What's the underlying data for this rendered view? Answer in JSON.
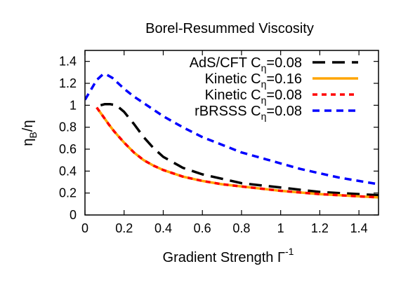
{
  "chart_data": {
    "type": "line",
    "title": "Borel-Resummed Viscosity",
    "xlabel": "Gradient Strength Γ",
    "xlabel_sup": "-1",
    "ylabel_main": "η",
    "ylabel_sub": "B",
    "ylabel_tail": "/η",
    "xlim": [
      0,
      1.5
    ],
    "ylim": [
      0,
      1.5
    ],
    "x_ticks": [
      0,
      0.2,
      0.4,
      0.6,
      0.8,
      1,
      1.2,
      1.4
    ],
    "x_tick_labels": [
      "0",
      "0.2",
      "0.4",
      "0.6",
      "0.8",
      "1",
      "1.2",
      "1.4"
    ],
    "y_ticks": [
      0,
      0.2,
      0.4,
      0.6,
      0.8,
      1,
      1.2,
      1.4
    ],
    "y_tick_labels": [
      "0",
      "0.2",
      "0.4",
      "0.6",
      "0.8",
      "1",
      "1.2",
      "1.4"
    ],
    "grid": false,
    "legend_position": "top-right",
    "series": [
      {
        "legend_main": "AdS/CFT C",
        "legend_sub": "η",
        "legend_value": "=0.08",
        "color": "#000000",
        "style": "long-dash",
        "x": [
          0.08,
          0.1,
          0.13,
          0.16,
          0.2,
          0.25,
          0.3,
          0.35,
          0.4,
          0.5,
          0.6,
          0.7,
          0.8,
          0.9,
          1.0,
          1.1,
          1.2,
          1.3,
          1.4,
          1.5
        ],
        "y": [
          1.0,
          1.01,
          1.01,
          1.0,
          0.94,
          0.83,
          0.71,
          0.61,
          0.53,
          0.43,
          0.37,
          0.33,
          0.29,
          0.27,
          0.25,
          0.23,
          0.21,
          0.2,
          0.19,
          0.18
        ]
      },
      {
        "legend_main": "Kinetic C",
        "legend_sub": "η",
        "legend_value": "=0.16",
        "color": "#ffa500",
        "style": "solid",
        "x": [
          0.06,
          0.08,
          0.1,
          0.12,
          0.15,
          0.2,
          0.25,
          0.3,
          0.35,
          0.4,
          0.5,
          0.6,
          0.7,
          0.8,
          0.9,
          1.0,
          1.1,
          1.2,
          1.3,
          1.4,
          1.5
        ],
        "y": [
          0.98,
          0.93,
          0.88,
          0.83,
          0.76,
          0.66,
          0.57,
          0.5,
          0.45,
          0.41,
          0.35,
          0.31,
          0.28,
          0.26,
          0.24,
          0.22,
          0.205,
          0.19,
          0.18,
          0.17,
          0.16
        ]
      },
      {
        "legend_main": "Kinetic C",
        "legend_sub": "η",
        "legend_value": "=0.08",
        "color": "#ff0000",
        "style": "short-dash",
        "x": [
          0.06,
          0.08,
          0.1,
          0.12,
          0.15,
          0.2,
          0.25,
          0.3,
          0.35,
          0.4,
          0.5,
          0.6,
          0.7,
          0.8,
          0.9,
          1.0,
          1.1,
          1.2,
          1.3,
          1.4,
          1.5
        ],
        "y": [
          0.98,
          0.93,
          0.88,
          0.83,
          0.76,
          0.66,
          0.57,
          0.5,
          0.45,
          0.41,
          0.35,
          0.31,
          0.28,
          0.26,
          0.24,
          0.22,
          0.205,
          0.19,
          0.18,
          0.17,
          0.16
        ]
      },
      {
        "legend_main": "rBRSSS C",
        "legend_sub": "η",
        "legend_value": "=0.08",
        "color": "#0000ff",
        "style": "dash",
        "x": [
          0.0,
          0.03,
          0.06,
          0.09,
          0.11,
          0.14,
          0.17,
          0.2,
          0.25,
          0.3,
          0.4,
          0.5,
          0.6,
          0.7,
          0.8,
          0.9,
          1.0,
          1.1,
          1.2,
          1.3,
          1.4,
          1.5
        ],
        "y": [
          1.05,
          1.14,
          1.23,
          1.28,
          1.28,
          1.25,
          1.2,
          1.15,
          1.08,
          1.02,
          0.9,
          0.8,
          0.71,
          0.64,
          0.57,
          0.52,
          0.47,
          0.42,
          0.38,
          0.34,
          0.31,
          0.28
        ]
      }
    ]
  }
}
